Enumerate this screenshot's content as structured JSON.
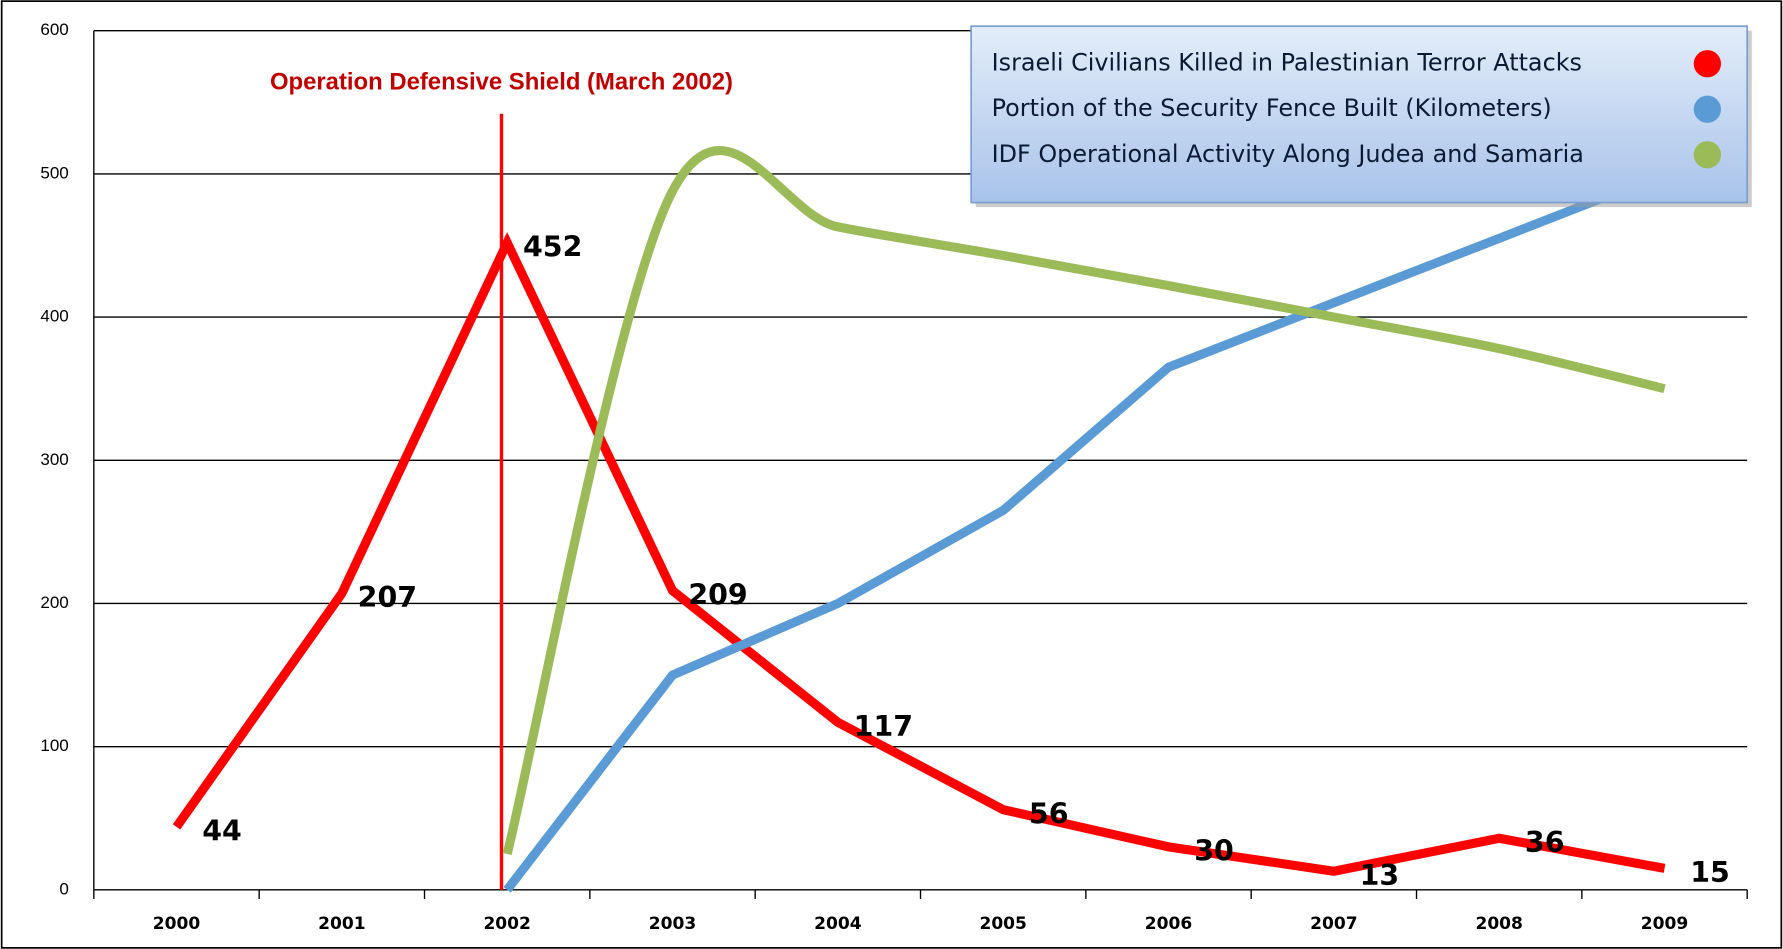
{
  "chart_data": {
    "type": "line",
    "categories": [
      "2000",
      "2001",
      "2002",
      "2003",
      "2004",
      "2005",
      "2006",
      "2007",
      "2008",
      "2009"
    ],
    "series": [
      {
        "name": "Israeli Civilians Killed in Palestinian Terror Attacks",
        "color": "#ff0000",
        "values": [
          44,
          207,
          452,
          209,
          117,
          56,
          30,
          13,
          36,
          15
        ],
        "data_labels": true
      },
      {
        "name": "Portion of the Security Fence Built (Kilometers)",
        "color": "#5b9bd5",
        "values": [
          null,
          null,
          0,
          150,
          200,
          265,
          365,
          410,
          455,
          500
        ]
      },
      {
        "name": "IDF Operational Activity Along Judea and Samaria",
        "color": "#9bbb59",
        "values": [
          null,
          null,
          25,
          488,
          463,
          443,
          422,
          400,
          378,
          350
        ],
        "smooth": true
      }
    ],
    "ylim": [
      0,
      600
    ],
    "yticks": [
      0,
      100,
      200,
      300,
      400,
      500,
      600
    ],
    "grid": true,
    "annotation": {
      "text": "Operation Defensive Shield (March 2002)",
      "x": "2002",
      "color": "#c00000"
    },
    "legend": "top-right"
  }
}
